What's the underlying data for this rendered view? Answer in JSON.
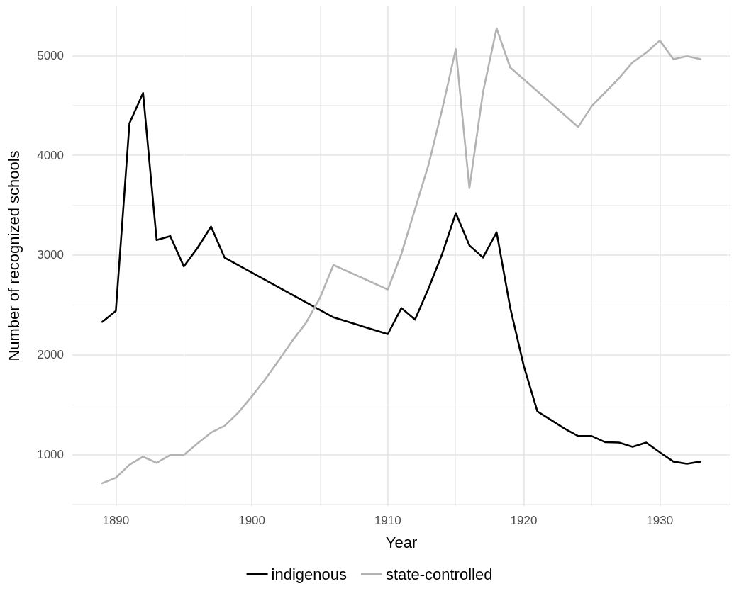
{
  "chart_data": {
    "type": "line",
    "xlabel": "Year",
    "ylabel": "Number of recognized schools",
    "xlim": [
      1886.8,
      1935.2
    ],
    "ylim": [
      484,
      5500
    ],
    "xticks": [
      1890,
      1900,
      1910,
      1920,
      1930
    ],
    "yticks": [
      1000,
      2000,
      3000,
      4000,
      5000
    ],
    "grid": true,
    "legend": "bottom",
    "line_style": "solid",
    "marker": "none",
    "series": [
      {
        "name": "indigenous",
        "color": "#000000",
        "x": [
          1889,
          1890,
          1891,
          1892,
          1893,
          1894,
          1895,
          1896,
          1897,
          1898,
          1906,
          1910,
          1911,
          1912,
          1913,
          1914,
          1915,
          1916,
          1917,
          1918,
          1919,
          1920,
          1921,
          1922,
          1923,
          1924,
          1925,
          1926,
          1927,
          1928,
          1929,
          1930,
          1931,
          1932,
          1933
        ],
        "values": [
          2330,
          2440,
          4320,
          4625,
          3150,
          3190,
          2886,
          3070,
          3285,
          2973,
          2375,
          2207,
          2469,
          2352,
          2667,
          3012,
          3420,
          3096,
          2975,
          3228,
          2472,
          1886,
          1432,
          1346,
          1259,
          1185,
          1185,
          1123,
          1120,
          1077,
          1120,
          1022,
          929,
          907,
          929
        ]
      },
      {
        "name": "state-controlled",
        "color": "#b3b3b3",
        "x": [
          1889,
          1890,
          1891,
          1892,
          1893,
          1894,
          1895,
          1896,
          1897,
          1898,
          1899,
          1900,
          1901,
          1902,
          1903,
          1904,
          1905,
          1906,
          1910,
          1911,
          1912,
          1913,
          1914,
          1915,
          1916,
          1917,
          1918,
          1919,
          1924,
          1925,
          1926,
          1927,
          1928,
          1929,
          1930,
          1931,
          1932,
          1933
        ],
        "values": [
          712,
          766,
          897,
          978,
          916,
          995,
          995,
          1111,
          1220,
          1288,
          1419,
          1582,
          1758,
          1948,
          2144,
          2323,
          2568,
          2900,
          2654,
          3012,
          3460,
          3907,
          4463,
          5065,
          3670,
          4633,
          5272,
          4880,
          4284,
          4494,
          4633,
          4772,
          4932,
          5028,
          5151,
          4963,
          4994,
          4963
        ]
      }
    ]
  }
}
